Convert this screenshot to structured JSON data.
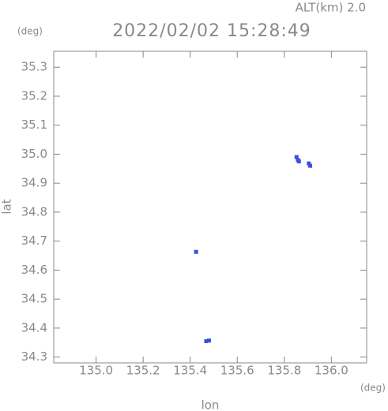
{
  "chart_data": {
    "type": "scatter",
    "title": "2022/02/02 15:28:49",
    "subtitle": "ALT(km) 2.0",
    "x_label": "lon",
    "y_label": "lat",
    "x_unit": "(deg)",
    "y_unit": "(deg)",
    "series": [
      {
        "color": "#3b4fe0",
        "x": [
          135.852,
          135.858,
          135.862,
          135.904,
          135.91,
          135.425,
          135.468,
          135.48
        ],
        "values": [
          34.99,
          34.98,
          34.975,
          34.968,
          34.96,
          34.663,
          34.355,
          34.357
        ]
      }
    ],
    "xlim": [
      134.82,
      136.15
    ],
    "ylim": [
      34.28,
      35.355
    ],
    "xticks": [
      {
        "value": 135,
        "label": "135.0"
      },
      135.2,
      135.4,
      135.6,
      135.8,
      {
        "value": 136,
        "label": "136.0"
      }
    ],
    "yticks": [
      34.3,
      34.4,
      34.5,
      34.6,
      34.7,
      34.8,
      34.9,
      {
        "value": 35,
        "label": "35.0"
      },
      35.1,
      35.2,
      35.3
    ],
    "grid": false
  }
}
